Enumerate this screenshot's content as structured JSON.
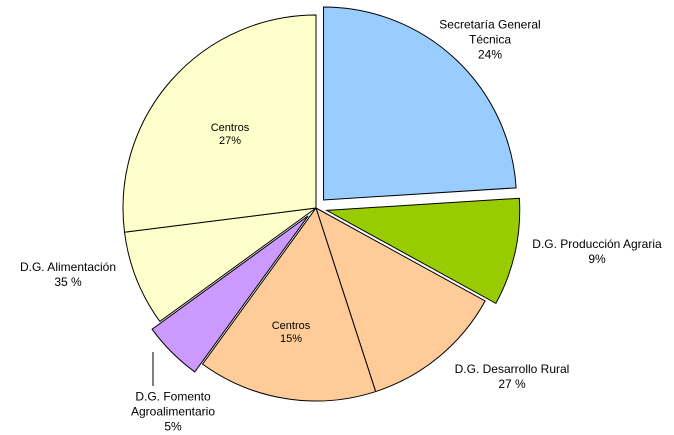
{
  "chart_data": {
    "type": "pie",
    "categories": [
      "Secretaría General Técnica",
      "D.G. Producción Agraria",
      "D.G. Desarrollo Rural",
      "D.G. Fomento Agroalimentario",
      "D.G. Alimentación"
    ],
    "values": [
      24,
      9,
      27,
      5,
      35
    ],
    "value_labels": [
      "24%",
      "9%",
      "27 %",
      "5%",
      "35 %"
    ],
    "colors": [
      "#99ccff",
      "#99cc00",
      "#ffcc99",
      "#cc99ff",
      "#ffffcc"
    ],
    "exploded": [
      true,
      true,
      false,
      true,
      false
    ],
    "inner": [
      null,
      null,
      {
        "name": "Centros",
        "value": 15,
        "value_label": "15%"
      },
      null,
      {
        "name": "Centros",
        "value": 27,
        "value_label": "27%"
      }
    ]
  }
}
